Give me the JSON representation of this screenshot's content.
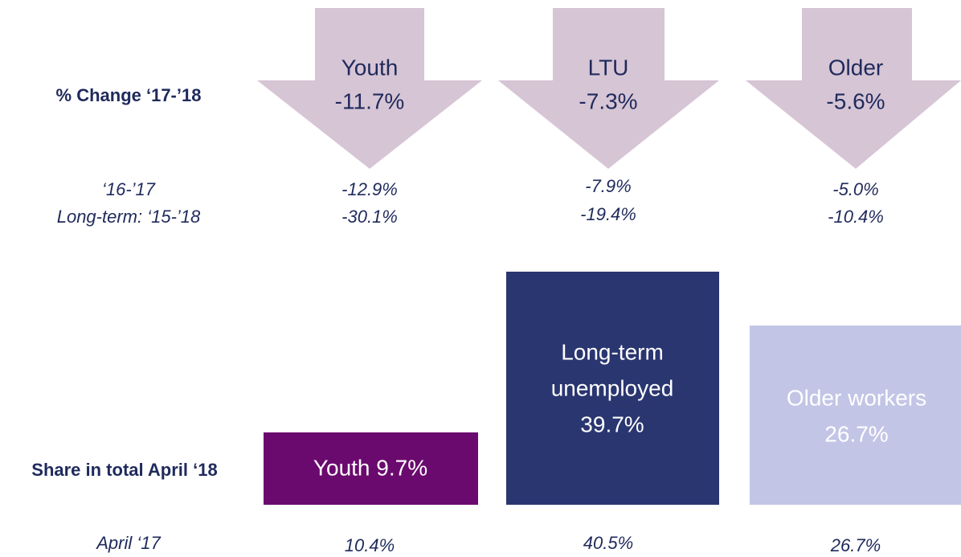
{
  "labels": {
    "change": "% Change ‘17-’18",
    "prev": "‘16-’17",
    "long_term": "Long-term: ‘15-’18",
    "share": "Share in total April ‘18",
    "april17": "April ‘17"
  },
  "groups": [
    {
      "arrow_name": "Youth",
      "change": "-11.7%",
      "prev": "-12.9%",
      "long_term": "-30.1%",
      "share_lines": [
        "Youth 9.7%"
      ],
      "april17": "10.4%"
    },
    {
      "arrow_name": "LTU",
      "change": "-7.3%",
      "prev": "-7.9%",
      "long_term": "-19.4%",
      "share_lines": [
        "Long-term",
        "unemployed",
        "39.7%"
      ],
      "april17": "40.5%"
    },
    {
      "arrow_name": "Older",
      "change": "-5.6%",
      "prev": "-5.0%",
      "long_term": "-10.4%",
      "share_lines": [
        "Older workers",
        "26.7%"
      ],
      "april17": "26.7%"
    }
  ]
}
